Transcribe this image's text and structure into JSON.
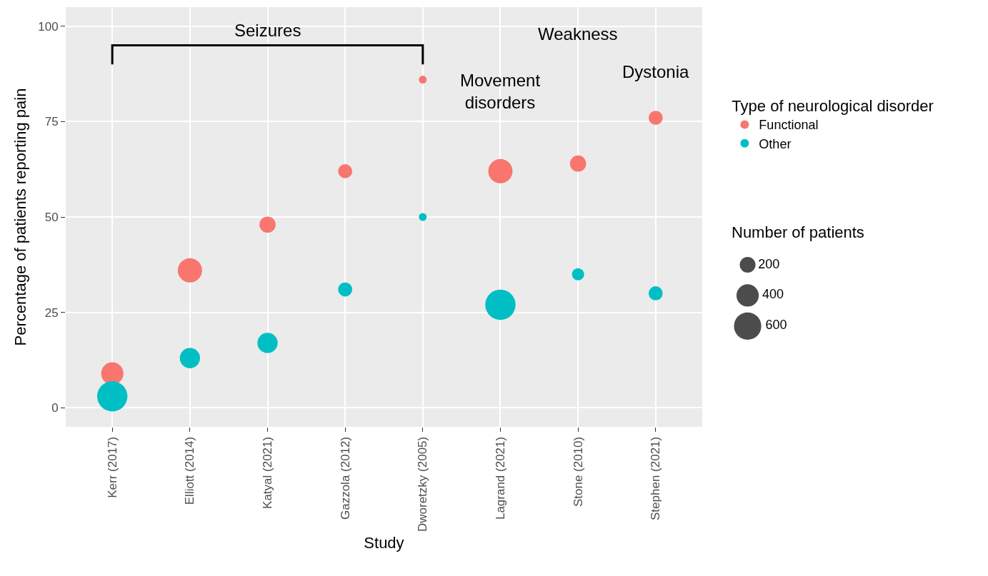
{
  "chart_data": {
    "type": "bubble",
    "xlabel": "Study",
    "ylabel": "Percentage of patients reporting pain",
    "legend_title": "Type of neurological disorder",
    "categories": [
      "Kerr (2017)",
      "Elliott (2014)",
      "Katyal (2021)",
      "Gazzola (2012)",
      "Dworetzky (2005)",
      "Lagrand (2021)",
      "Stone (2010)",
      "Stephen (2021)"
    ],
    "series": [
      {
        "name": "Functional",
        "color": "#f8766d",
        "values": [
          9,
          36,
          48,
          62,
          86,
          62,
          64,
          76
        ],
        "sizes": [
          400,
          475,
          210,
          160,
          50,
          475,
          210,
          160
        ]
      },
      {
        "name": "Other",
        "color": "#00bfc4",
        "values": [
          3,
          13,
          17,
          31,
          50,
          27,
          35,
          30
        ],
        "sizes": [
          740,
          330,
          330,
          160,
          50,
          740,
          120,
          160
        ]
      }
    ],
    "size_legend": [
      200,
      400,
      600
    ],
    "ylim": [
      -5,
      105
    ],
    "yticks": [
      0,
      25,
      50,
      75,
      100
    ],
    "grid": true,
    "legend": "right",
    "marker": "circle",
    "annotations": [
      "Seizures",
      "Movement disorders",
      "Weakness",
      "Dystonia",
      "Number of patients"
    ]
  }
}
